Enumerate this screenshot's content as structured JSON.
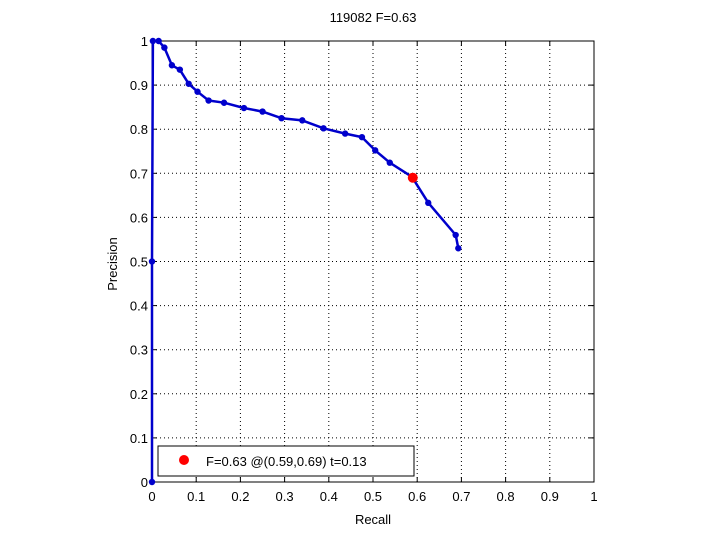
{
  "chart_data": {
    "type": "line",
    "title": "119082 F=0.63",
    "xlabel": "Recall",
    "ylabel": "Precision",
    "xlim": [
      0,
      1
    ],
    "ylim": [
      0,
      1
    ],
    "xticks": [
      "0",
      "0.1",
      "0.2",
      "0.3",
      "0.4",
      "0.5",
      "0.6",
      "0.7",
      "0.8",
      "0.9",
      "1"
    ],
    "yticks": [
      "0",
      "0.1",
      "0.2",
      "0.3",
      "0.4",
      "0.5",
      "0.6",
      "0.7",
      "0.8",
      "0.9",
      "1"
    ],
    "grid": true,
    "legend_position": "bottom-left",
    "series": [
      {
        "color": "#0000cc",
        "marker": "dot",
        "x": [
          0,
          0,
          0.002,
          0.015,
          0.028,
          0.045,
          0.063,
          0.083,
          0.103,
          0.128,
          0.163,
          0.208,
          0.25,
          0.293,
          0.34,
          0.388,
          0.437,
          0.475,
          0.505,
          0.538,
          0.588,
          0.625,
          0.687,
          0.693
        ],
        "y": [
          0,
          0.5,
          1.0,
          1.0,
          0.985,
          0.945,
          0.935,
          0.903,
          0.885,
          0.865,
          0.86,
          0.848,
          0.84,
          0.825,
          0.82,
          0.802,
          0.79,
          0.782,
          0.752,
          0.724,
          0.692,
          0.633,
          0.56,
          0.53
        ]
      }
    ],
    "highlight": {
      "x": 0.59,
      "y": 0.69,
      "color": "#ff0000",
      "label": "F=0.63 @(0.59,0.69) t=0.13"
    }
  }
}
